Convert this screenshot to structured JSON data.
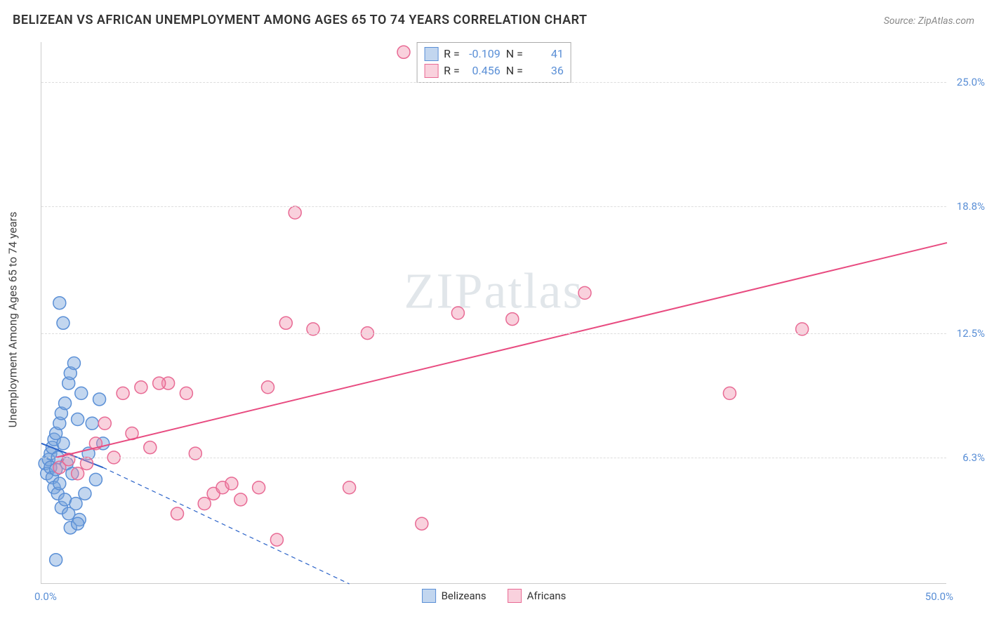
{
  "header": {
    "title": "BELIZEAN VS AFRICAN UNEMPLOYMENT AMONG AGES 65 TO 74 YEARS CORRELATION CHART",
    "source": "Source: ZipAtlas.com"
  },
  "watermark": {
    "part1": "ZIP",
    "part2": "atlas"
  },
  "chart": {
    "type": "scatter",
    "background_color": "#ffffff",
    "grid_color": "#dddddd",
    "axis_color": "#cccccc",
    "xlim": [
      0,
      50
    ],
    "ylim": [
      0,
      27
    ],
    "xticks": [
      {
        "pos": 0,
        "label": "0.0%"
      },
      {
        "pos": 50,
        "label": "50.0%"
      }
    ],
    "yticks": [
      {
        "pos": 6.3,
        "label": "6.3%"
      },
      {
        "pos": 12.5,
        "label": "12.5%"
      },
      {
        "pos": 18.8,
        "label": "18.8%"
      },
      {
        "pos": 25.0,
        "label": "25.0%"
      }
    ],
    "ylabel": "Unemployment Among Ages 65 to 74 years",
    "marker_radius": 9,
    "marker_stroke_width": 1.5,
    "line_width": 2,
    "series": [
      {
        "name": "Belizeans",
        "fill_color": "rgba(120,165,220,0.45)",
        "stroke_color": "#5a8fd6",
        "line_color": "#2a62c8",
        "R": "-0.109",
        "N": "41",
        "trend": {
          "x1": 0,
          "y1": 7.0,
          "x2": 3.4,
          "y2": 5.8,
          "dash_x2": 17,
          "dash_y2": 0
        },
        "points": [
          [
            0.2,
            6.0
          ],
          [
            0.3,
            5.5
          ],
          [
            0.4,
            6.2
          ],
          [
            0.5,
            5.8
          ],
          [
            0.5,
            6.5
          ],
          [
            0.6,
            5.3
          ],
          [
            0.6,
            6.8
          ],
          [
            0.7,
            7.2
          ],
          [
            0.7,
            4.8
          ],
          [
            0.8,
            5.7
          ],
          [
            0.8,
            7.5
          ],
          [
            0.9,
            6.3
          ],
          [
            0.9,
            4.5
          ],
          [
            1.0,
            8.0
          ],
          [
            1.0,
            5.0
          ],
          [
            1.1,
            8.5
          ],
          [
            1.1,
            3.8
          ],
          [
            1.2,
            7.0
          ],
          [
            1.3,
            9.0
          ],
          [
            1.3,
            4.2
          ],
          [
            1.4,
            6.0
          ],
          [
            1.5,
            10.0
          ],
          [
            1.5,
            3.5
          ],
          [
            1.6,
            10.5
          ],
          [
            1.7,
            5.5
          ],
          [
            1.8,
            11.0
          ],
          [
            1.9,
            4.0
          ],
          [
            2.0,
            8.2
          ],
          [
            2.1,
            3.2
          ],
          [
            2.2,
            9.5
          ],
          [
            2.4,
            4.5
          ],
          [
            2.6,
            6.5
          ],
          [
            2.8,
            8.0
          ],
          [
            3.0,
            5.2
          ],
          [
            3.2,
            9.2
          ],
          [
            1.0,
            14.0
          ],
          [
            1.2,
            13.0
          ],
          [
            0.8,
            1.2
          ],
          [
            1.6,
            2.8
          ],
          [
            2.0,
            3.0
          ],
          [
            3.4,
            7.0
          ]
        ]
      },
      {
        "name": "Africans",
        "fill_color": "rgba(240,140,170,0.40)",
        "stroke_color": "#e86a94",
        "line_color": "#e84b80",
        "R": "0.456",
        "N": "36",
        "trend": {
          "x1": 0.8,
          "y1": 6.3,
          "x2": 50,
          "y2": 17.0
        },
        "points": [
          [
            1.0,
            5.8
          ],
          [
            1.5,
            6.2
          ],
          [
            2.0,
            5.5
          ],
          [
            2.5,
            6.0
          ],
          [
            3.0,
            7.0
          ],
          [
            3.5,
            8.0
          ],
          [
            4.0,
            6.3
          ],
          [
            4.5,
            9.5
          ],
          [
            5.0,
            7.5
          ],
          [
            5.5,
            9.8
          ],
          [
            6.0,
            6.8
          ],
          [
            7.0,
            10.0
          ],
          [
            7.5,
            3.5
          ],
          [
            8.0,
            9.5
          ],
          [
            8.5,
            6.5
          ],
          [
            9.0,
            4.0
          ],
          [
            9.5,
            4.5
          ],
          [
            10.0,
            4.8
          ],
          [
            10.5,
            5.0
          ],
          [
            11.0,
            4.2
          ],
          [
            12.0,
            4.8
          ],
          [
            12.5,
            9.8
          ],
          [
            13.0,
            2.2
          ],
          [
            14.0,
            18.5
          ],
          [
            15.0,
            12.7
          ],
          [
            17.0,
            4.8
          ],
          [
            18.0,
            12.5
          ],
          [
            20.0,
            26.5
          ],
          [
            21.0,
            3.0
          ],
          [
            23.0,
            13.5
          ],
          [
            26.0,
            13.2
          ],
          [
            30.0,
            14.5
          ],
          [
            38.0,
            9.5
          ],
          [
            42.0,
            12.7
          ],
          [
            13.5,
            13.0
          ],
          [
            6.5,
            10.0
          ]
        ]
      }
    ],
    "stats_legend": {
      "R_prefix": "R =",
      "N_prefix": "N ="
    },
    "bottom_legend": [
      {
        "label": "Belizeans",
        "fill": "rgba(120,165,220,0.45)",
        "stroke": "#5a8fd6"
      },
      {
        "label": "Africans",
        "fill": "rgba(240,140,170,0.40)",
        "stroke": "#e86a94"
      }
    ]
  }
}
